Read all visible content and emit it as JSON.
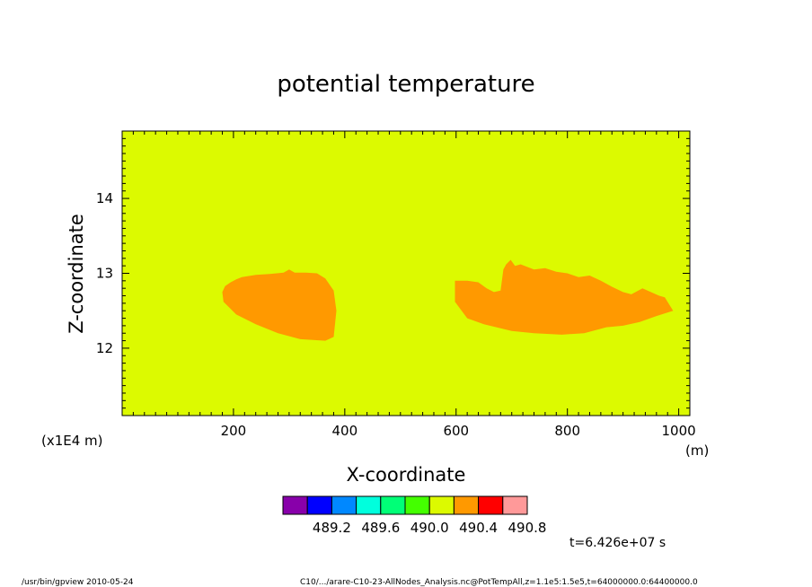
{
  "chart_data": {
    "type": "heatmap",
    "title": "potential temperature",
    "xlabel": "X-coordinate",
    "ylabel": "Z-coordinate",
    "x_unit": "(m)",
    "y_scale_label": "(x1E4 m)",
    "xlim": [
      0,
      1020
    ],
    "ylim": [
      11.1,
      14.9
    ],
    "x_ticks": [
      "200",
      "400",
      "600",
      "800",
      "1000"
    ],
    "y_ticks": [
      "12",
      "13",
      "14"
    ],
    "background_value_range": [
      490.0,
      490.4
    ],
    "background_color": "#dcfa00",
    "regions": [
      {
        "value_range": [
          490.4,
          490.8
        ],
        "color": "#ff9900",
        "outline": [
          [
            180,
            12.75
          ],
          [
            185,
            12.83
          ],
          [
            195,
            12.88
          ],
          [
            205,
            12.92
          ],
          [
            215,
            12.95
          ],
          [
            240,
            12.98
          ],
          [
            265,
            12.99
          ],
          [
            290,
            13.01
          ],
          [
            300,
            13.05
          ],
          [
            310,
            13.01
          ],
          [
            330,
            13.01
          ],
          [
            350,
            13.0
          ],
          [
            365,
            12.93
          ],
          [
            380,
            12.77
          ],
          [
            385,
            12.5
          ],
          [
            380,
            12.15
          ],
          [
            365,
            12.1
          ],
          [
            320,
            12.12
          ],
          [
            280,
            12.2
          ],
          [
            240,
            12.32
          ],
          [
            205,
            12.45
          ],
          [
            182,
            12.62
          ]
        ]
      },
      {
        "value_range": [
          490.4,
          490.8
        ],
        "color": "#ff9900",
        "outline": [
          [
            598,
            12.9
          ],
          [
            620,
            12.9
          ],
          [
            640,
            12.88
          ],
          [
            655,
            12.8
          ],
          [
            668,
            12.75
          ],
          [
            680,
            12.77
          ],
          [
            685,
            13.05
          ],
          [
            690,
            13.12
          ],
          [
            698,
            13.18
          ],
          [
            706,
            13.1
          ],
          [
            716,
            13.12
          ],
          [
            740,
            13.05
          ],
          [
            760,
            13.07
          ],
          [
            780,
            13.02
          ],
          [
            800,
            13.0
          ],
          [
            820,
            12.95
          ],
          [
            840,
            12.97
          ],
          [
            860,
            12.9
          ],
          [
            880,
            12.82
          ],
          [
            900,
            12.75
          ],
          [
            915,
            12.72
          ],
          [
            935,
            12.8
          ],
          [
            950,
            12.75
          ],
          [
            965,
            12.7
          ],
          [
            975,
            12.68
          ],
          [
            990,
            12.5
          ],
          [
            960,
            12.43
          ],
          [
            930,
            12.35
          ],
          [
            900,
            12.3
          ],
          [
            870,
            12.28
          ],
          [
            830,
            12.2
          ],
          [
            790,
            12.18
          ],
          [
            740,
            12.2
          ],
          [
            700,
            12.23
          ],
          [
            650,
            12.32
          ],
          [
            620,
            12.4
          ],
          [
            598,
            12.62
          ]
        ]
      }
    ],
    "colorbar": {
      "colors": [
        "#8800aa",
        "#0000ff",
        "#0088ff",
        "#00ffdd",
        "#00ff77",
        "#44ff00",
        "#dcfa00",
        "#ff9900",
        "#ff0000",
        "#ff9999"
      ],
      "labels": [
        "489.2",
        "489.6",
        "490.0",
        "490.4",
        "490.8"
      ]
    },
    "time_label": "t=6.426e+07 s"
  },
  "footer": {
    "left": "/usr/bin/gpview   2010-05-24",
    "right": "C10/.../arare-C10-23-AllNodes_Analysis.nc@PotTempAll,z=1.1e5:1.5e5,t=64000000.0:64400000.0"
  }
}
